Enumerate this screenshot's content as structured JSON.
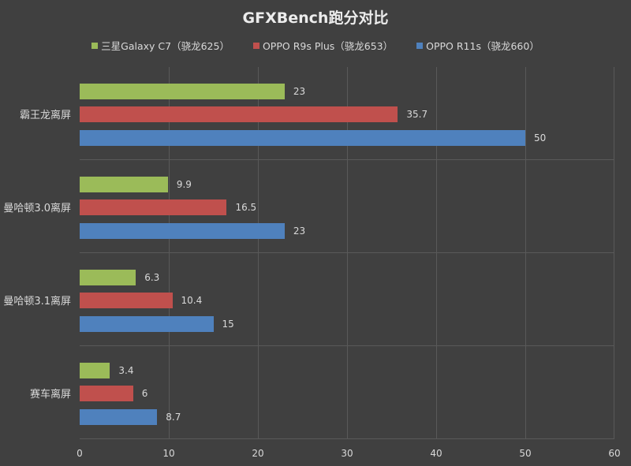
{
  "chart_data": {
    "type": "bar",
    "orientation": "horizontal",
    "title": "GFXBench跑分对比",
    "categories": [
      "霸王龙离屏",
      "曼哈顿3.0离屏",
      "曼哈顿3.1离屏",
      "赛车离屏"
    ],
    "series": [
      {
        "name": "三星Galaxy C7（骁龙625）",
        "color": "#9bbb59",
        "values": [
          23,
          9.9,
          6.3,
          3.4
        ]
      },
      {
        "name": "OPPO R9s Plus（骁龙653）",
        "color": "#c0504d",
        "values": [
          35.7,
          16.5,
          10.4,
          6
        ]
      },
      {
        "name": "OPPO R11s（骁龙660）",
        "color": "#4f81bd",
        "values": [
          50,
          23,
          15,
          8.7
        ]
      }
    ],
    "xlabel": "",
    "ylabel": "",
    "xlim": [
      0,
      60
    ],
    "xticks": [
      "0",
      "10",
      "20",
      "30",
      "40",
      "50",
      "60"
    ],
    "grid": true,
    "legend_position": "top",
    "data_labels": true
  }
}
